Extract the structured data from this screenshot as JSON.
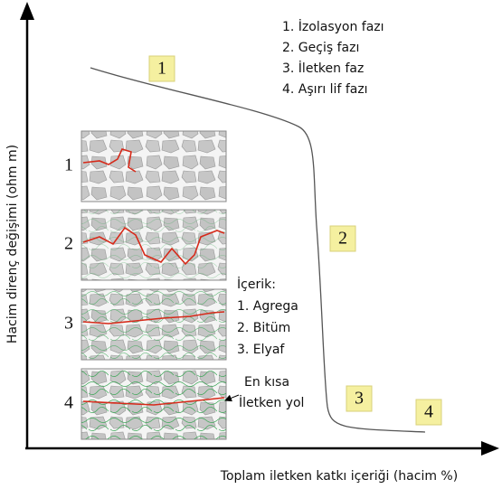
{
  "axes": {
    "y_label": "Hacim direnç değişimi (ohm m)",
    "x_label": "Toplam iletken katkı içeriği (hacim %)"
  },
  "phase_markers": [
    "1",
    "2",
    "3",
    "4"
  ],
  "phase_legend": [
    "1. İzolasyon fazı",
    "2. Geçiş fazı",
    "3. İletken faz",
    "4. Aşırı lif fazı"
  ],
  "panel_labels": [
    "1",
    "2",
    "3",
    "4"
  ],
  "content": {
    "title": "İçerik:",
    "items": [
      "1. Agrega",
      "2. Bitüm",
      "3. Elyaf"
    ]
  },
  "annotation": [
    "En kısa",
    "İletken yol"
  ]
}
